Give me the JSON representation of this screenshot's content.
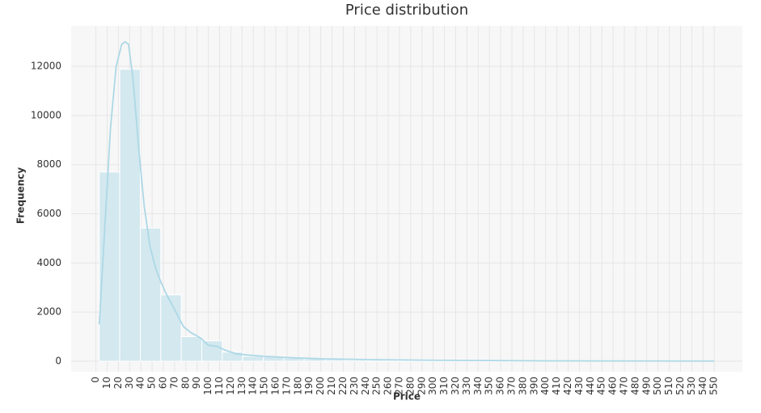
{
  "chart_data": {
    "type": "histogram",
    "title": "Price distribution",
    "x_label": "Price",
    "y_label": "Frequency",
    "bins": [
      3,
      21.2,
      39.5,
      57.7,
      75.9,
      94.2,
      112.4,
      130.6,
      148.9,
      167.1,
      185.3,
      203.6,
      221.8,
      240.0,
      258.3,
      276.5,
      294.7,
      313.0,
      331.2,
      349.4,
      367.7,
      385.9,
      404.1,
      422.4,
      440.6,
      458.8,
      477.1,
      495.3,
      513.5,
      531.8,
      550
    ],
    "values": [
      7700,
      11880,
      5420,
      2700,
      1000,
      830,
      370,
      200,
      180,
      130,
      100,
      70,
      50,
      40,
      30,
      25,
      20,
      30,
      15,
      15,
      10,
      10,
      10,
      8,
      8,
      5,
      5,
      5,
      5,
      5
    ],
    "color": "#d3e8ef",
    "kde": {
      "color": "#add8e6",
      "x": [
        3,
        8,
        13,
        18,
        23,
        26,
        29,
        33,
        38,
        43,
        48,
        53,
        58,
        63,
        70,
        78,
        85,
        93,
        100,
        108,
        115,
        125,
        135,
        150,
        170,
        200,
        250,
        300,
        400,
        550
      ],
      "y": [
        1500,
        5500,
        9500,
        12000,
        12900,
        13000,
        12900,
        11500,
        8700,
        6300,
        4700,
        3800,
        3200,
        2700,
        2100,
        1400,
        1150,
        950,
        650,
        600,
        450,
        300,
        250,
        200,
        150,
        100,
        60,
        40,
        15,
        5
      ]
    },
    "xlim": [
      -22,
      575
    ],
    "ylim": [
      -430,
      13650
    ],
    "xticks": [
      0,
      10,
      20,
      30,
      40,
      50,
      60,
      70,
      80,
      90,
      100,
      110,
      120,
      130,
      140,
      150,
      160,
      170,
      180,
      190,
      200,
      210,
      220,
      230,
      240,
      250,
      260,
      270,
      280,
      290,
      300,
      310,
      320,
      330,
      340,
      350,
      360,
      370,
      380,
      390,
      400,
      410,
      420,
      430,
      440,
      450,
      460,
      470,
      480,
      490,
      500,
      510,
      520,
      530,
      540,
      550
    ],
    "yticks": [
      0,
      2000,
      4000,
      6000,
      8000,
      10000,
      12000
    ],
    "grid": true
  }
}
